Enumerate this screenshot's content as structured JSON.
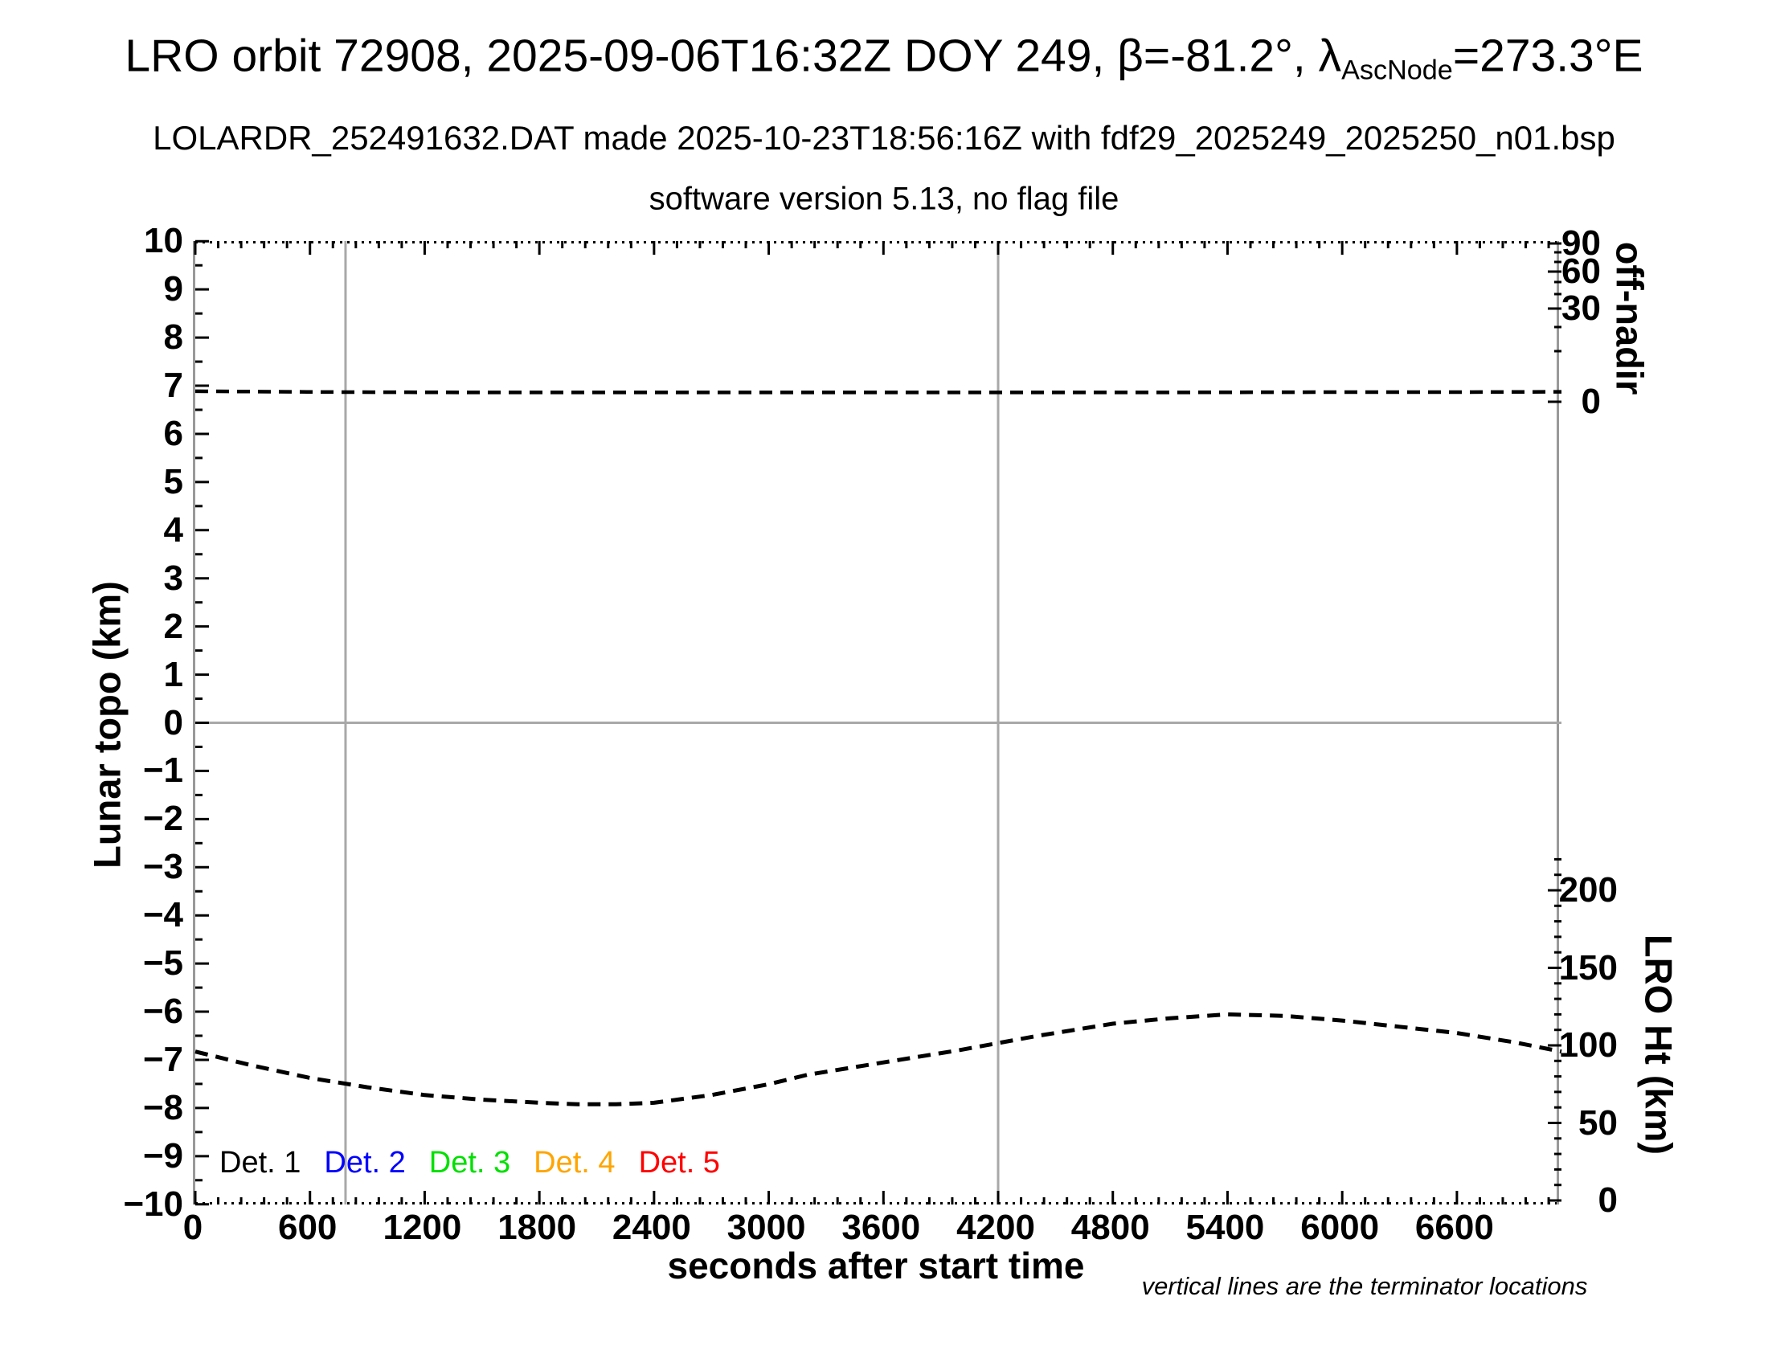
{
  "header": {
    "title_prefix": "LRO orbit 72908, 2025-09-06T16:32Z DOY 249, β=-81.2°, λ",
    "title_subscript": "AscNode",
    "title_suffix": "=273.3°E",
    "subtitle": "LOLARDR_252491632.DAT made 2025-10-23T18:56:16Z with fdf29_2025249_2025250_n01.bsp",
    "subtitle2": "software version 5.13, no flag file"
  },
  "chart_data": {
    "type": "line",
    "x_axis": {
      "label": "seconds after start time",
      "min": 0,
      "max": 7147,
      "major_ticks": [
        0,
        600,
        1200,
        1800,
        2400,
        3000,
        3600,
        4200,
        4800,
        5400,
        6000,
        6600
      ],
      "tick_labels": [
        "0",
        "600",
        "1200",
        "1800",
        "2400",
        "3000",
        "3600",
        "4200",
        "4800",
        "5400",
        "6000",
        "6600"
      ],
      "minor_step": 120
    },
    "y_left": {
      "label": "Lunar topo (km)",
      "min": -10,
      "max": 10,
      "major_step": 1,
      "minor_step": 0.5,
      "tick_labels": [
        "10",
        "9",
        "8",
        "7",
        "6",
        "5",
        "4",
        "3",
        "2",
        "1",
        "0",
        "−1",
        "−2",
        "−3",
        "−4",
        "−5",
        "−6",
        "−7",
        "−8",
        "−9",
        "−10"
      ]
    },
    "y_right_offnadir": {
      "label": "off-nadir",
      "tick_values": [
        90,
        60,
        30,
        0
      ],
      "tick_labels": [
        "90",
        "60",
        "30",
        "0"
      ],
      "scale": "nonlinear-sine"
    },
    "y_right_ht": {
      "label": "LRO Ht (km)",
      "tick_values": [
        200,
        150,
        100,
        50,
        0
      ],
      "tick_labels": [
        "200",
        "150",
        "100",
        "50",
        "0"
      ],
      "minor_step_km": 10,
      "minor_max_km": 220
    },
    "grid": {
      "zero_line_topo": 0,
      "terminator_lines_sec": [
        786,
        4200
      ],
      "line_color": "#a8a8a8"
    },
    "series": [
      {
        "name": "off-nadir angle",
        "axis": "offnadir",
        "style": "dashed",
        "color": "#000000",
        "points_deg": [
          [
            0,
            3.4
          ],
          [
            500,
            3.2
          ],
          [
            786,
            3.1
          ],
          [
            1500,
            3.0
          ],
          [
            2500,
            3.0
          ],
          [
            3500,
            3.0
          ],
          [
            4200,
            3.0
          ],
          [
            5000,
            3.0
          ],
          [
            6000,
            3.1
          ],
          [
            6600,
            3.1
          ],
          [
            7147,
            3.2
          ]
        ]
      },
      {
        "name": "LRO height",
        "axis": "ht",
        "style": "dashed",
        "color": "#000000",
        "points_km": [
          [
            0,
            96
          ],
          [
            300,
            87
          ],
          [
            600,
            79
          ],
          [
            900,
            73
          ],
          [
            1200,
            68
          ],
          [
            1500,
            65
          ],
          [
            1800,
            63
          ],
          [
            2000,
            62
          ],
          [
            2200,
            62
          ],
          [
            2400,
            63
          ],
          [
            2700,
            68
          ],
          [
            3000,
            75
          ],
          [
            3200,
            81
          ],
          [
            3600,
            89
          ],
          [
            4000,
            97
          ],
          [
            4400,
            106
          ],
          [
            4800,
            114
          ],
          [
            5100,
            117.5
          ],
          [
            5400,
            120
          ],
          [
            5700,
            119
          ],
          [
            6000,
            116
          ],
          [
            6300,
            112
          ],
          [
            6600,
            108
          ],
          [
            6900,
            102
          ],
          [
            7147,
            96
          ]
        ]
      }
    ],
    "legend": {
      "items": [
        {
          "label": "Det. 1",
          "color": "#000000"
        },
        {
          "label": "Det. 2",
          "color": "#0000ff"
        },
        {
          "label": "Det. 3",
          "color": "#00e000"
        },
        {
          "label": "Det. 4",
          "color": "#ffa500"
        },
        {
          "label": "Det. 5",
          "color": "#ff0000"
        }
      ]
    },
    "footnote": "vertical lines are the terminator locations"
  }
}
